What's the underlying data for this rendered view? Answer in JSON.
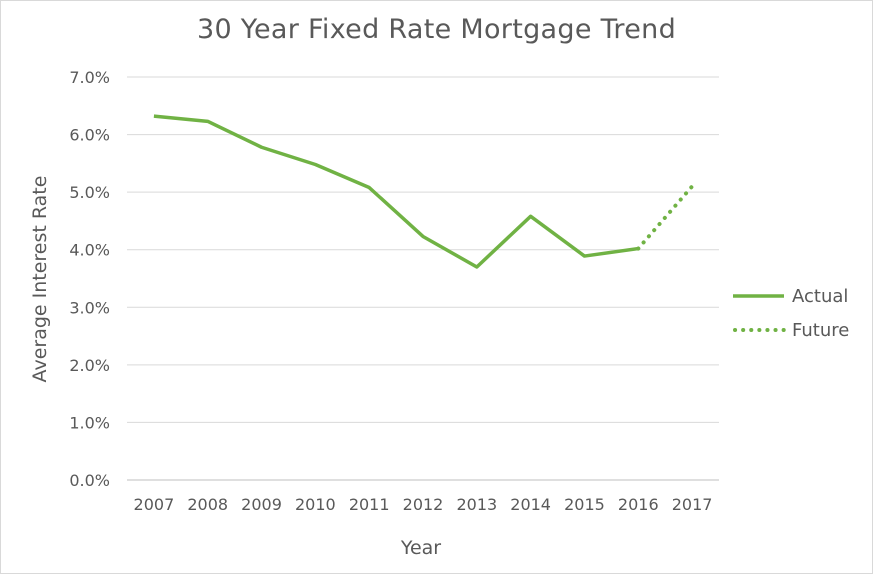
{
  "chart_data": {
    "type": "line",
    "title": "30 Year Fixed Rate Mortgage Trend",
    "xlabel": "Year",
    "ylabel": "Average Interest Rate",
    "categories": [
      "2007",
      "2008",
      "2009",
      "2010",
      "2011",
      "2012",
      "2013",
      "2014",
      "2015",
      "2016",
      "2017"
    ],
    "yticks": [
      "0.0%",
      "1.0%",
      "2.0%",
      "3.0%",
      "4.0%",
      "5.0%",
      "6.0%",
      "7.0%"
    ],
    "ylim": [
      0,
      7
    ],
    "grid": true,
    "legend_position": "right",
    "series": [
      {
        "name": "Actual",
        "style": "solid",
        "color": "#70b244",
        "points": [
          {
            "x": "2007",
            "y": 6.32
          },
          {
            "x": "2008",
            "y": 6.23
          },
          {
            "x": "2009",
            "y": 5.78
          },
          {
            "x": "2010",
            "y": 5.48
          },
          {
            "x": "2011",
            "y": 5.08
          },
          {
            "x": "2012",
            "y": 4.23
          },
          {
            "x": "2013",
            "y": 3.7
          },
          {
            "x": "2014",
            "y": 4.58
          },
          {
            "x": "2015",
            "y": 3.89
          },
          {
            "x": "2016",
            "y": 4.02
          }
        ]
      },
      {
        "name": "Future",
        "style": "dotted",
        "color": "#70b244",
        "points": [
          {
            "x": "2016",
            "y": 4.02
          },
          {
            "x": "2017",
            "y": 5.1
          }
        ]
      }
    ]
  }
}
